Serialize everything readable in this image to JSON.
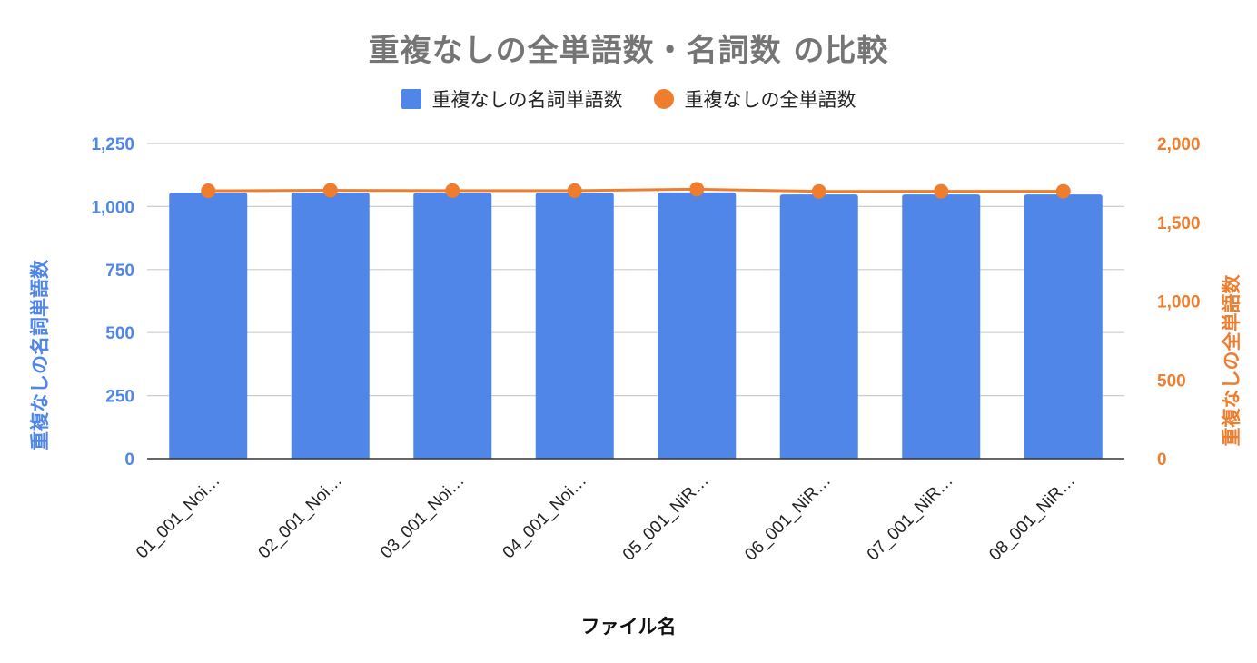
{
  "chart_data": {
    "type": "bar+line",
    "title": "重複なしの全単語数・名詞数 の比較",
    "xlabel": "ファイル名",
    "ylabel_left": "重複なしの名詞単語数",
    "ylabel_right": "重複なしの全単語数",
    "categories": [
      "01_001_Noi…",
      "02_001_Noi…",
      "03_001_Noi…",
      "04_001_Noi…",
      "05_001_NiR…",
      "06_001_NiR…",
      "07_001_NiR…",
      "08_001_NiR…"
    ],
    "series": [
      {
        "name": "重複なしの名詞単語数",
        "type": "bar",
        "axis": "left",
        "color": "#4f86e8",
        "values": [
          1055,
          1055,
          1055,
          1055,
          1056,
          1048,
          1048,
          1048
        ]
      },
      {
        "name": "重複なしの全単語数",
        "type": "line",
        "axis": "right",
        "color": "#ef7d2e",
        "values": [
          1700,
          1703,
          1701,
          1701,
          1710,
          1696,
          1697,
          1697
        ]
      }
    ],
    "y_left": {
      "range": [
        0,
        1250
      ],
      "ticks": [
        0,
        250,
        500,
        750,
        1000,
        1250
      ],
      "tick_labels": [
        "0",
        "250",
        "500",
        "750",
        "1,000",
        "1,250"
      ],
      "color": "#4f86e8"
    },
    "y_right": {
      "range": [
        0,
        2000
      ],
      "ticks": [
        0,
        500,
        1000,
        1500,
        2000
      ],
      "tick_labels": [
        "0",
        "500",
        "1,000",
        "1,500",
        "2,000"
      ],
      "color": "#ef7d2e"
    },
    "grid": true,
    "legend_position": "top"
  },
  "legend": {
    "bar_label": "重複なしの名詞単語数",
    "line_label": "重複なしの全単語数"
  }
}
